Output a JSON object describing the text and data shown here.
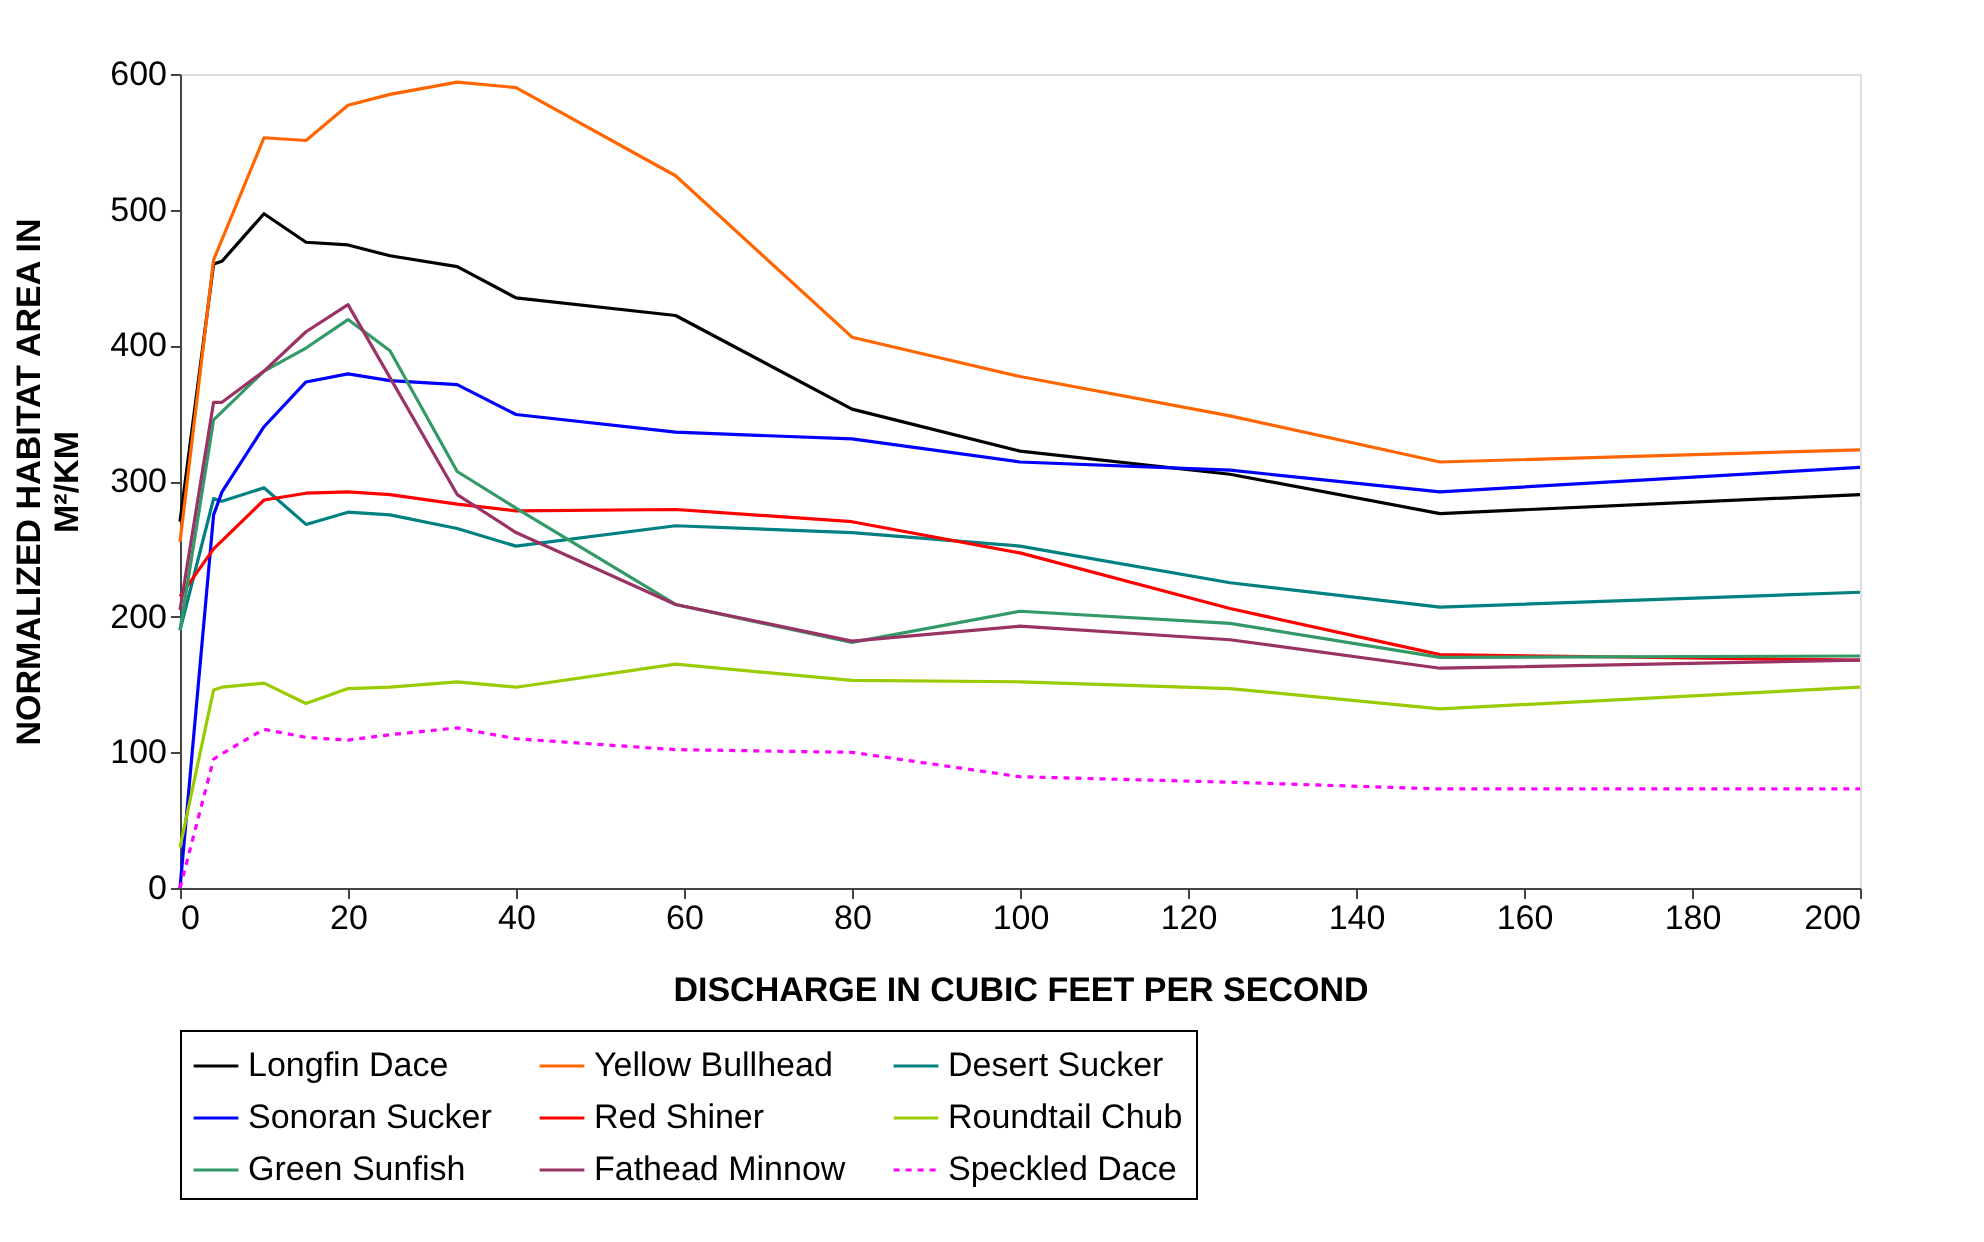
{
  "chart_data": {
    "type": "line",
    "xlabel": "DISCHARGE IN CUBIC FEET PER SECOND",
    "ylabel": "NORMALIZED HABITAT AREA IN M²/KM",
    "xlim": [
      0,
      200
    ],
    "xticks": [
      0,
      20,
      40,
      60,
      80,
      100,
      120,
      140,
      160,
      180,
      200
    ],
    "ylim": [
      0,
      600
    ],
    "yticks": [
      0,
      100,
      200,
      300,
      400,
      500,
      600
    ],
    "grid": false,
    "legend": "bottom",
    "marker": "none",
    "series": [
      {
        "name": "Longfin Dace",
        "color": "#000000",
        "line_style": "solid",
        "x": [
          0,
          4,
          5,
          10,
          15,
          20,
          25,
          33,
          40,
          59,
          80,
          100,
          125,
          150,
          200
        ],
        "values": [
          270,
          460,
          462,
          497,
          476,
          474,
          466,
          458,
          435,
          422,
          353,
          322,
          305,
          276,
          290
        ]
      },
      {
        "name": "Yellow Bullhead",
        "color": "#ff6600",
        "line_style": "solid",
        "x": [
          0,
          4,
          10,
          15,
          20,
          25,
          33,
          40,
          59,
          80,
          100,
          125,
          150,
          200
        ],
        "values": [
          255,
          463,
          553,
          551,
          577,
          585,
          594,
          590,
          525,
          406,
          377,
          348,
          314,
          323
        ]
      },
      {
        "name": "Desert Sucker",
        "color": "#008080",
        "line_style": "solid",
        "x": [
          0,
          4,
          5,
          10,
          15,
          20,
          25,
          33,
          40,
          59,
          80,
          100,
          125,
          150,
          200
        ],
        "values": [
          190,
          287,
          285,
          295,
          268,
          277,
          275,
          265,
          252,
          267,
          262,
          252,
          225,
          207,
          218
        ]
      },
      {
        "name": "Sonoran Sucker",
        "color": "#0000ff",
        "line_style": "solid",
        "x": [
          0,
          4,
          5,
          10,
          15,
          20,
          25,
          33,
          40,
          59,
          80,
          100,
          125,
          150,
          200
        ],
        "values": [
          0,
          275,
          292,
          340,
          373,
          379,
          374,
          371,
          349,
          336,
          331,
          314,
          308,
          292,
          310
        ]
      },
      {
        "name": "Red Shiner",
        "color": "#ff0000",
        "line_style": "solid",
        "x": [
          0,
          4,
          10,
          15,
          20,
          25,
          33,
          40,
          59,
          80,
          100,
          125,
          150,
          200
        ],
        "values": [
          215,
          250,
          286,
          291,
          292,
          290,
          283,
          278,
          279,
          270,
          247,
          206,
          172,
          168
        ]
      },
      {
        "name": "Roundtail Chub",
        "color": "#99cc00",
        "line_style": "solid",
        "x": [
          0,
          4,
          5,
          10,
          15,
          20,
          25,
          33,
          40,
          59,
          80,
          100,
          125,
          150,
          200
        ],
        "values": [
          30,
          146,
          148,
          151,
          136,
          147,
          148,
          152,
          148,
          165,
          153,
          152,
          147,
          132,
          148
        ]
      },
      {
        "name": "Green Sunfish",
        "color": "#339966",
        "line_style": "solid",
        "x": [
          0,
          4,
          10,
          15,
          20,
          25,
          33,
          40,
          59,
          80,
          100,
          125,
          150,
          200
        ],
        "values": [
          190,
          345,
          381,
          398,
          419,
          396,
          307,
          280,
          209,
          181,
          204,
          195,
          170,
          171
        ]
      },
      {
        "name": "Fathead Minnow",
        "color": "#993366",
        "line_style": "solid",
        "x": [
          0,
          4,
          5,
          10,
          15,
          20,
          33,
          40,
          59,
          80,
          100,
          125,
          150,
          200
        ],
        "values": [
          205,
          358,
          358,
          381,
          410,
          430,
          290,
          262,
          209,
          182,
          193,
          183,
          162,
          168
        ]
      },
      {
        "name": "Speckled Dace",
        "color": "#ff00ff",
        "line_style": "dotted",
        "x": [
          0,
          4,
          5,
          10,
          15,
          20,
          25,
          33,
          40,
          59,
          80,
          100,
          125,
          150,
          200
        ],
        "values": [
          0,
          95,
          99,
          117,
          111,
          109,
          113,
          118,
          110,
          102,
          100,
          82,
          78,
          73,
          73
        ]
      }
    ]
  }
}
